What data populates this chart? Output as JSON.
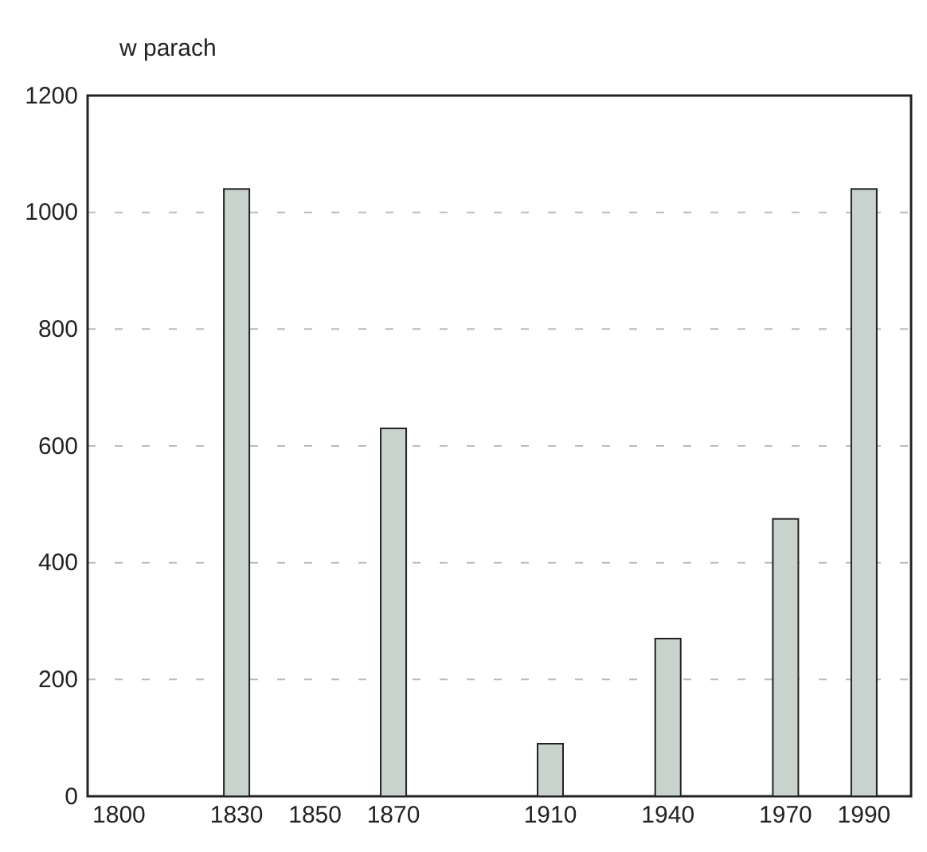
{
  "chart_data": {
    "type": "bar",
    "ylabel": "w parach",
    "x": [
      1800,
      1830,
      1850,
      1870,
      1910,
      1940,
      1970,
      1990
    ],
    "values": [
      0,
      1040,
      0,
      630,
      90,
      270,
      475,
      1040
    ],
    "color": "#c9d3ce",
    "xlim": [
      1792,
      2002
    ],
    "xticks": [
      1800,
      1830,
      1850,
      1870,
      1910,
      1940,
      1970,
      1990
    ],
    "ylim": [
      0,
      1200
    ],
    "yticks": [
      0,
      200,
      400,
      600,
      800,
      1000,
      1200
    ],
    "grid": "y"
  }
}
